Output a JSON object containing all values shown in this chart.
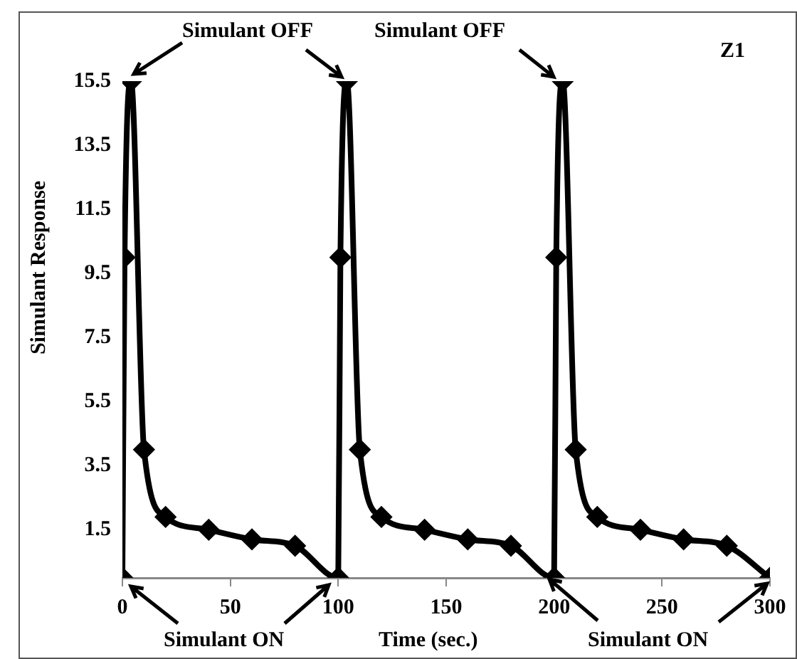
{
  "chart_data": {
    "type": "line",
    "title": "Z1",
    "xlabel": "Time (sec.)",
    "ylabel": "Simulant Response",
    "x": [
      0,
      1,
      4,
      10,
      20,
      40,
      60,
      80,
      100,
      101,
      104,
      110,
      120,
      140,
      160,
      180,
      200,
      201,
      204,
      210,
      220,
      240,
      260,
      280,
      300
    ],
    "series": [
      {
        "color": "#000000",
        "values": [
          0,
          10,
          15.5,
          4,
          1.9,
          1.5,
          1.2,
          1.0,
          0,
          10,
          15.5,
          4,
          1.9,
          1.5,
          1.2,
          1.0,
          0,
          10,
          15.5,
          4,
          1.9,
          1.5,
          1.2,
          1.0,
          0
        ]
      }
    ],
    "xlim": [
      0,
      300
    ],
    "xticks": [
      0,
      50,
      100,
      150,
      200,
      250,
      300
    ],
    "ylim": [
      0,
      15.5
    ],
    "yticks": [
      1.5,
      3.5,
      5.5,
      7.5,
      9.5,
      11.5,
      13.5,
      15.5
    ],
    "grid": false,
    "legend": false,
    "marker": "diamond",
    "line_style": "solid",
    "annotations": [
      "Simulant OFF",
      "Simulant OFF",
      "Simulant ON",
      "Simulant ON"
    ]
  }
}
